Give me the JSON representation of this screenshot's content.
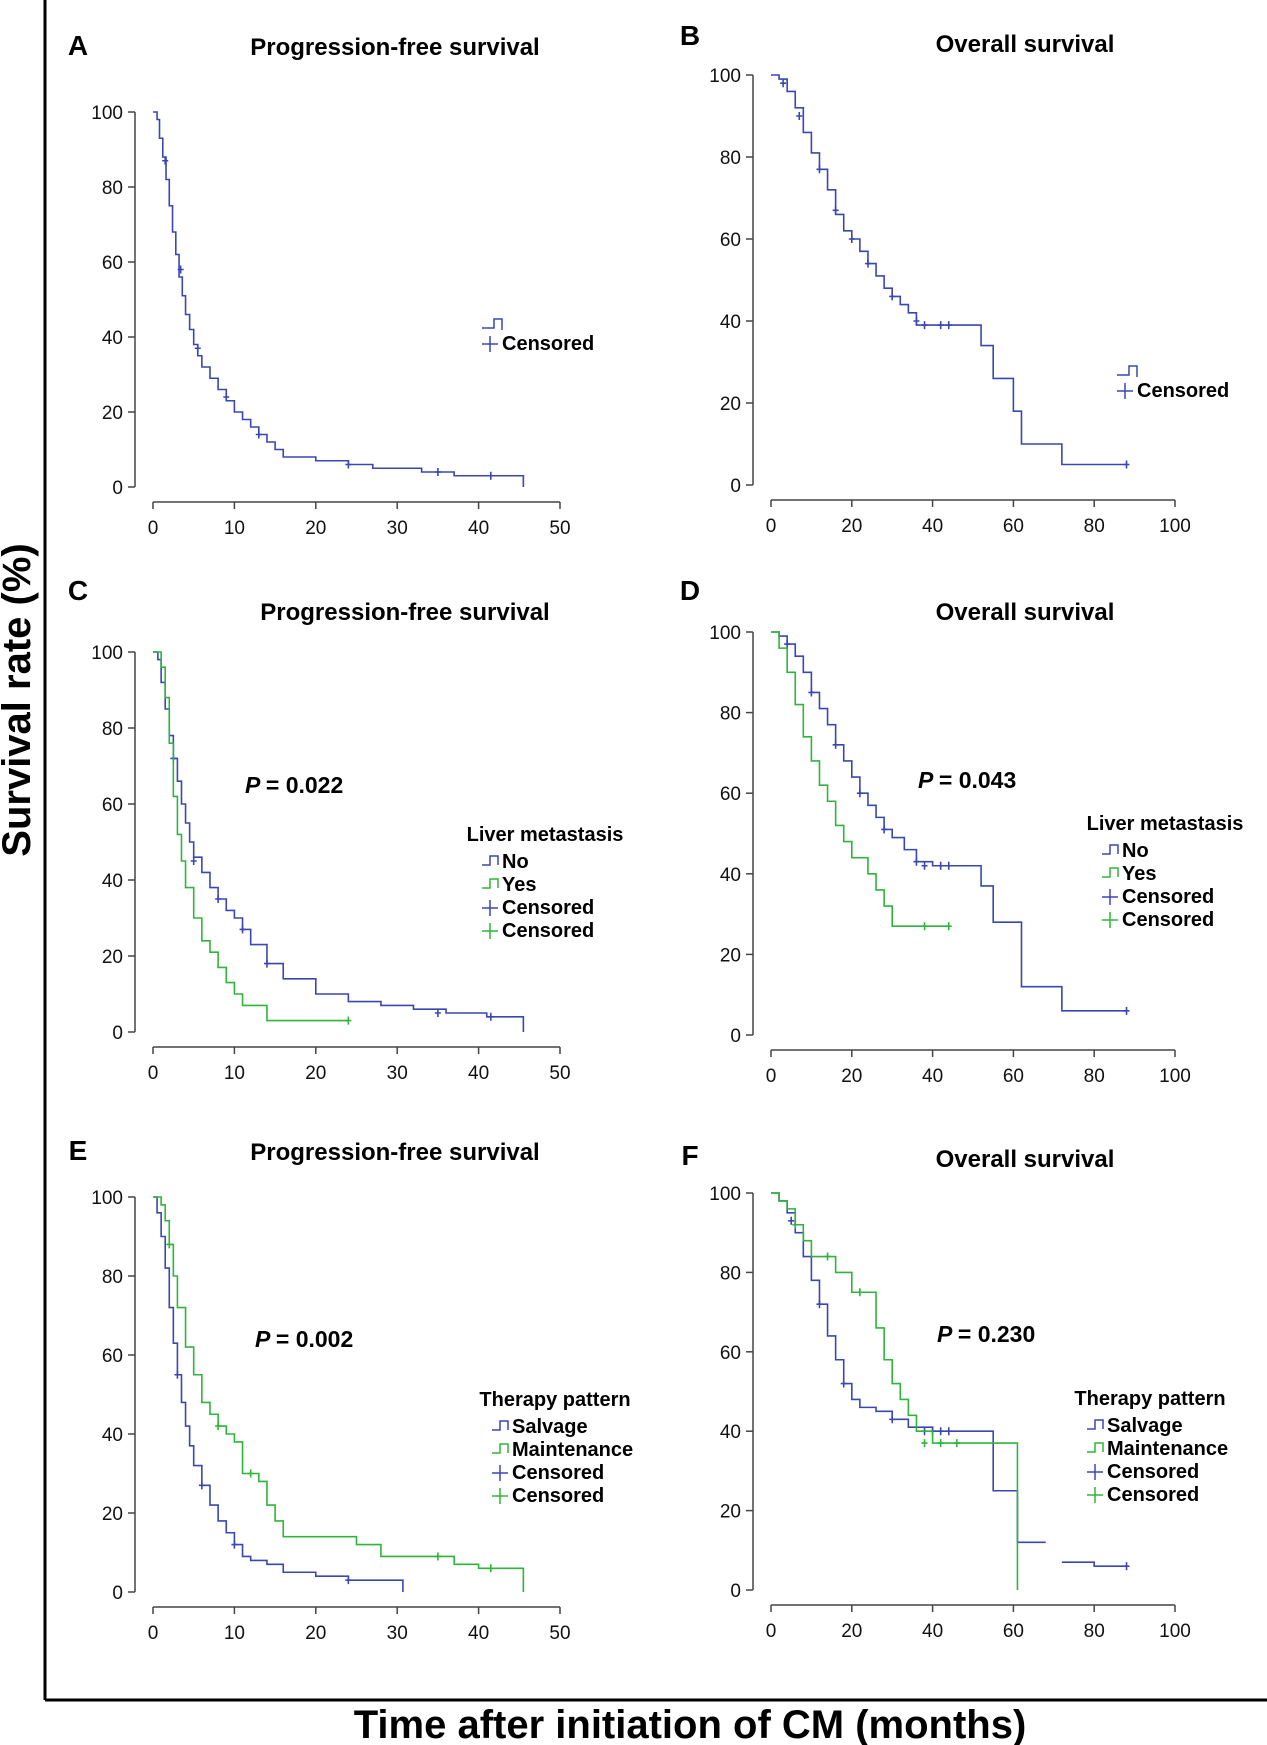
{
  "figure": {
    "ylabel": "Survival rate  (%)",
    "xlabel": "Time after initiation of CM (months)"
  },
  "chart_data": [
    {
      "type": "line",
      "panel": "A",
      "title": "Progression-free survival",
      "xlim": [
        0,
        50
      ],
      "xticks": [
        0,
        10,
        20,
        30,
        40,
        50
      ],
      "ylim": [
        0,
        100
      ],
      "yticks": [
        0,
        20,
        40,
        60,
        80,
        100
      ],
      "legend_title": "",
      "legend": [
        "Censored"
      ],
      "pvalue": "",
      "series": [
        {
          "name": "",
          "color": "#3a47b3",
          "censor_color": "#3a47b3",
          "x": [
            0,
            0.5,
            0.8,
            1.2,
            1.6,
            2.0,
            2.4,
            2.8,
            3.2,
            3.6,
            4.0,
            4.5,
            5.0,
            5.5,
            6.0,
            7.0,
            8.0,
            9.0,
            10.0,
            11.0,
            12.0,
            13.0,
            14.0,
            15.0,
            16.0,
            20.0,
            24.0,
            27.0,
            30.0,
            33.0,
            37.0,
            41.0,
            45.5
          ],
          "y": [
            100,
            98,
            93,
            88,
            82,
            75,
            68,
            62,
            56,
            51,
            46,
            42,
            38,
            35,
            32,
            29,
            26,
            23,
            20,
            18,
            16,
            14,
            12,
            10,
            8,
            7,
            6,
            5,
            5,
            4,
            3,
            3,
            0
          ],
          "censored": [
            [
              1.5,
              87
            ],
            [
              3.4,
              58
            ],
            [
              5.5,
              37
            ],
            [
              9,
              24
            ],
            [
              13,
              14
            ],
            [
              24,
              6
            ],
            [
              35,
              4
            ],
            [
              41.5,
              3
            ]
          ]
        }
      ]
    },
    {
      "type": "line",
      "panel": "B",
      "title": "Overall survival",
      "xlim": [
        0,
        100
      ],
      "xticks": [
        0,
        20,
        40,
        60,
        80,
        100
      ],
      "ylim": [
        0,
        100
      ],
      "yticks": [
        0,
        20,
        40,
        60,
        80,
        100
      ],
      "legend_title": "",
      "legend": [
        "Censored"
      ],
      "pvalue": "",
      "series": [
        {
          "name": "",
          "color": "#3a47b3",
          "censor_color": "#3a47b3",
          "x": [
            0,
            2,
            4,
            6,
            8,
            10,
            12,
            14,
            16,
            18,
            20,
            22,
            24,
            26,
            28,
            30,
            32,
            34,
            36,
            40,
            46,
            50,
            52,
            55,
            59,
            60,
            62,
            65,
            72,
            80,
            88
          ],
          "y": [
            100,
            99,
            96,
            92,
            86,
            81,
            77,
            72,
            66,
            62,
            60,
            57,
            54,
            51,
            48,
            46,
            44,
            42,
            39,
            39,
            39,
            39,
            34,
            26,
            26,
            18,
            10,
            10,
            5,
            5,
            5
          ],
          "censored": [
            [
              3,
              98
            ],
            [
              7,
              90
            ],
            [
              12,
              77
            ],
            [
              16,
              67
            ],
            [
              20,
              60
            ],
            [
              24,
              54
            ],
            [
              30,
              46
            ],
            [
              36,
              40
            ],
            [
              38,
              39
            ],
            [
              42,
              39
            ],
            [
              44,
              39
            ],
            [
              88,
              5
            ]
          ]
        }
      ]
    },
    {
      "type": "line",
      "panel": "C",
      "title": "Progression-free survival",
      "xlim": [
        0,
        50
      ],
      "xticks": [
        0,
        10,
        20,
        30,
        40,
        50
      ],
      "ylim": [
        0,
        100
      ],
      "yticks": [
        0,
        20,
        40,
        60,
        80,
        100
      ],
      "legend_title": "Liver metastasis",
      "legend": [
        "No",
        "Yes",
        "Censored",
        "Censored"
      ],
      "pvalue": "= 0.022",
      "series": [
        {
          "name": "No",
          "color": "#3a47b3",
          "censor_color": "#3a47b3",
          "x": [
            0,
            0.6,
            1.0,
            1.5,
            2.0,
            2.5,
            3.0,
            3.5,
            4.0,
            4.5,
            5.0,
            6.0,
            7.0,
            8.0,
            9.0,
            10.0,
            11.0,
            12.0,
            14.0,
            16.0,
            20.0,
            24.0,
            28.0,
            32.0,
            36.0,
            41.0,
            45.5
          ],
          "y": [
            100,
            98,
            92,
            85,
            78,
            72,
            66,
            60,
            55,
            50,
            46,
            42,
            38,
            35,
            32,
            30,
            27,
            23,
            18,
            14,
            10,
            8,
            7,
            6,
            5,
            4,
            0
          ],
          "censored": [
            [
              2.5,
              72
            ],
            [
              5,
              45
            ],
            [
              8,
              35
            ],
            [
              11,
              27
            ],
            [
              14,
              18
            ],
            [
              35,
              5
            ],
            [
              41.5,
              4
            ]
          ]
        },
        {
          "name": "Yes",
          "color": "#2fb53a",
          "censor_color": "#2fb53a",
          "x": [
            0,
            1.0,
            1.5,
            2.0,
            2.5,
            3.0,
            3.5,
            4.0,
            5.0,
            6.0,
            7.0,
            8.0,
            9.0,
            10.0,
            11.0,
            14.0,
            24.0
          ],
          "y": [
            100,
            96,
            88,
            76,
            62,
            52,
            45,
            38,
            30,
            24,
            21,
            17,
            13,
            10,
            7,
            3,
            3
          ],
          "censored": [
            [
              24,
              3
            ]
          ]
        }
      ]
    },
    {
      "type": "line",
      "panel": "D",
      "title": "Overall survival",
      "xlim": [
        0,
        100
      ],
      "xticks": [
        0,
        20,
        40,
        60,
        80,
        100
      ],
      "ylim": [
        0,
        100
      ],
      "yticks": [
        0,
        20,
        40,
        60,
        80,
        100
      ],
      "legend_title": "Liver metastasis",
      "legend": [
        "No",
        "Yes",
        "Censored",
        "Censored"
      ],
      "pvalue": "= 0.043",
      "series": [
        {
          "name": "No",
          "color": "#3a47b3",
          "censor_color": "#3a47b3",
          "x": [
            0,
            2,
            4,
            6,
            8,
            10,
            12,
            14,
            16,
            18,
            20,
            22,
            24,
            26,
            28,
            30,
            33,
            36,
            40,
            46,
            52,
            55,
            60,
            62,
            72,
            80,
            88
          ],
          "y": [
            100,
            99,
            97,
            94,
            90,
            85,
            81,
            77,
            72,
            68,
            64,
            60,
            57,
            54,
            51,
            49,
            46,
            43,
            42,
            42,
            37,
            28,
            28,
            12,
            6,
            6,
            6
          ],
          "censored": [
            [
              4,
              97
            ],
            [
              10,
              85
            ],
            [
              16,
              72
            ],
            [
              22,
              60
            ],
            [
              28,
              51
            ],
            [
              36,
              43
            ],
            [
              38,
              42
            ],
            [
              42,
              42
            ],
            [
              44,
              42
            ],
            [
              88,
              6
            ]
          ]
        },
        {
          "name": "Yes",
          "color": "#2fb53a",
          "censor_color": "#2fb53a",
          "x": [
            0,
            2,
            4,
            6,
            8,
            10,
            12,
            14,
            16,
            18,
            20,
            24,
            26,
            28,
            30,
            34,
            38,
            44
          ],
          "y": [
            100,
            96,
            90,
            82,
            74,
            68,
            62,
            58,
            52,
            48,
            44,
            40,
            36,
            32,
            27,
            27,
            27,
            27
          ],
          "censored": [
            [
              38,
              27
            ],
            [
              44,
              27
            ]
          ]
        }
      ]
    },
    {
      "type": "line",
      "panel": "E",
      "title": "Progression-free survival",
      "xlim": [
        0,
        50
      ],
      "xticks": [
        0,
        10,
        20,
        30,
        40,
        50
      ],
      "ylim": [
        0,
        100
      ],
      "yticks": [
        0,
        20,
        40,
        60,
        80,
        100
      ],
      "legend_title": "Therapy pattern",
      "legend": [
        "Salvage",
        "Maintenance",
        "Censored",
        "Censored"
      ],
      "pvalue": "= 0.002",
      "series": [
        {
          "name": "Salvage",
          "color": "#3a47b3",
          "censor_color": "#3a47b3",
          "x": [
            0,
            0.5,
            1.0,
            1.5,
            2.0,
            2.5,
            3.0,
            3.5,
            4.0,
            4.5,
            5.0,
            6.0,
            7.0,
            8.0,
            9.0,
            10.0,
            11.0,
            12.0,
            14.0,
            16.0,
            20.0,
            24.0,
            28.0,
            30.7
          ],
          "y": [
            100,
            96,
            90,
            82,
            72,
            63,
            55,
            48,
            42,
            37,
            32,
            27,
            22,
            18,
            15,
            12,
            9,
            8,
            7,
            5,
            4,
            3,
            3,
            0
          ],
          "censored": [
            [
              3,
              55
            ],
            [
              6,
              27
            ],
            [
              10,
              12
            ],
            [
              24,
              3
            ]
          ]
        },
        {
          "name": "Maintenance",
          "color": "#2fb53a",
          "censor_color": "#2fb53a",
          "x": [
            0,
            1.0,
            1.5,
            2.0,
            2.5,
            3.0,
            4.0,
            5.0,
            6.0,
            7.0,
            8.0,
            9.0,
            10.0,
            11.0,
            13.0,
            14.0,
            15.0,
            16.0,
            20.0,
            25.0,
            28.0,
            37.0,
            40.0,
            45.5
          ],
          "y": [
            100,
            98,
            94,
            88,
            80,
            72,
            62,
            55,
            48,
            45,
            42,
            40,
            38,
            30,
            28,
            22,
            18,
            14,
            14,
            12,
            9,
            7,
            6,
            0
          ],
          "censored": [
            [
              2,
              88
            ],
            [
              8,
              42
            ],
            [
              12,
              30
            ],
            [
              35,
              9
            ],
            [
              41.5,
              6
            ]
          ]
        }
      ]
    },
    {
      "type": "line",
      "panel": "F",
      "title": "Overall survival",
      "xlim": [
        0,
        100
      ],
      "xticks": [
        0,
        20,
        40,
        60,
        80,
        100
      ],
      "ylim": [
        0,
        100
      ],
      "yticks": [
        0,
        20,
        40,
        60,
        80,
        100
      ],
      "legend_title": "Therapy pattern",
      "legend": [
        "Salvage",
        "Maintenance",
        "Censored",
        "Censored"
      ],
      "pvalue": "= 0.230",
      "series": [
        {
          "name": "Salvage",
          "color": "#3a47b3",
          "censor_color": "#3a47b3",
          "x": [
            0,
            2,
            4,
            6,
            8,
            10,
            12,
            14,
            16,
            18,
            20,
            22,
            26,
            30,
            34,
            40,
            46,
            52,
            55,
            60,
            61,
            68,
            68.1,
            72,
            80,
            88
          ],
          "y": [
            100,
            98,
            95,
            90,
            84,
            78,
            72,
            64,
            58,
            52,
            48,
            46,
            45,
            43,
            41,
            40,
            40,
            40,
            25,
            25,
            12,
            12,
            null,
            7,
            6,
            6
          ],
          "censored": [
            [
              5,
              93
            ],
            [
              12,
              72
            ],
            [
              18,
              52
            ],
            [
              30,
              43
            ],
            [
              38,
              40
            ],
            [
              40,
              40
            ],
            [
              42,
              40
            ],
            [
              44,
              40
            ],
            [
              88,
              6
            ]
          ]
        },
        {
          "name": "Maintenance",
          "color": "#2fb53a",
          "censor_color": "#2fb53a",
          "x": [
            0,
            2,
            4,
            6,
            8,
            10,
            12,
            16,
            20,
            24,
            26,
            28,
            30,
            32,
            34,
            36,
            40,
            46,
            52,
            60,
            61
          ],
          "y": [
            100,
            98,
            96,
            92,
            88,
            84,
            84,
            80,
            75,
            75,
            66,
            58,
            52,
            48,
            44,
            40,
            37,
            37,
            37,
            37,
            0
          ],
          "censored": [
            [
              6,
              92
            ],
            [
              14,
              84
            ],
            [
              22,
              75
            ],
            [
              38,
              37
            ],
            [
              42,
              37
            ],
            [
              46,
              37
            ]
          ]
        }
      ]
    }
  ]
}
